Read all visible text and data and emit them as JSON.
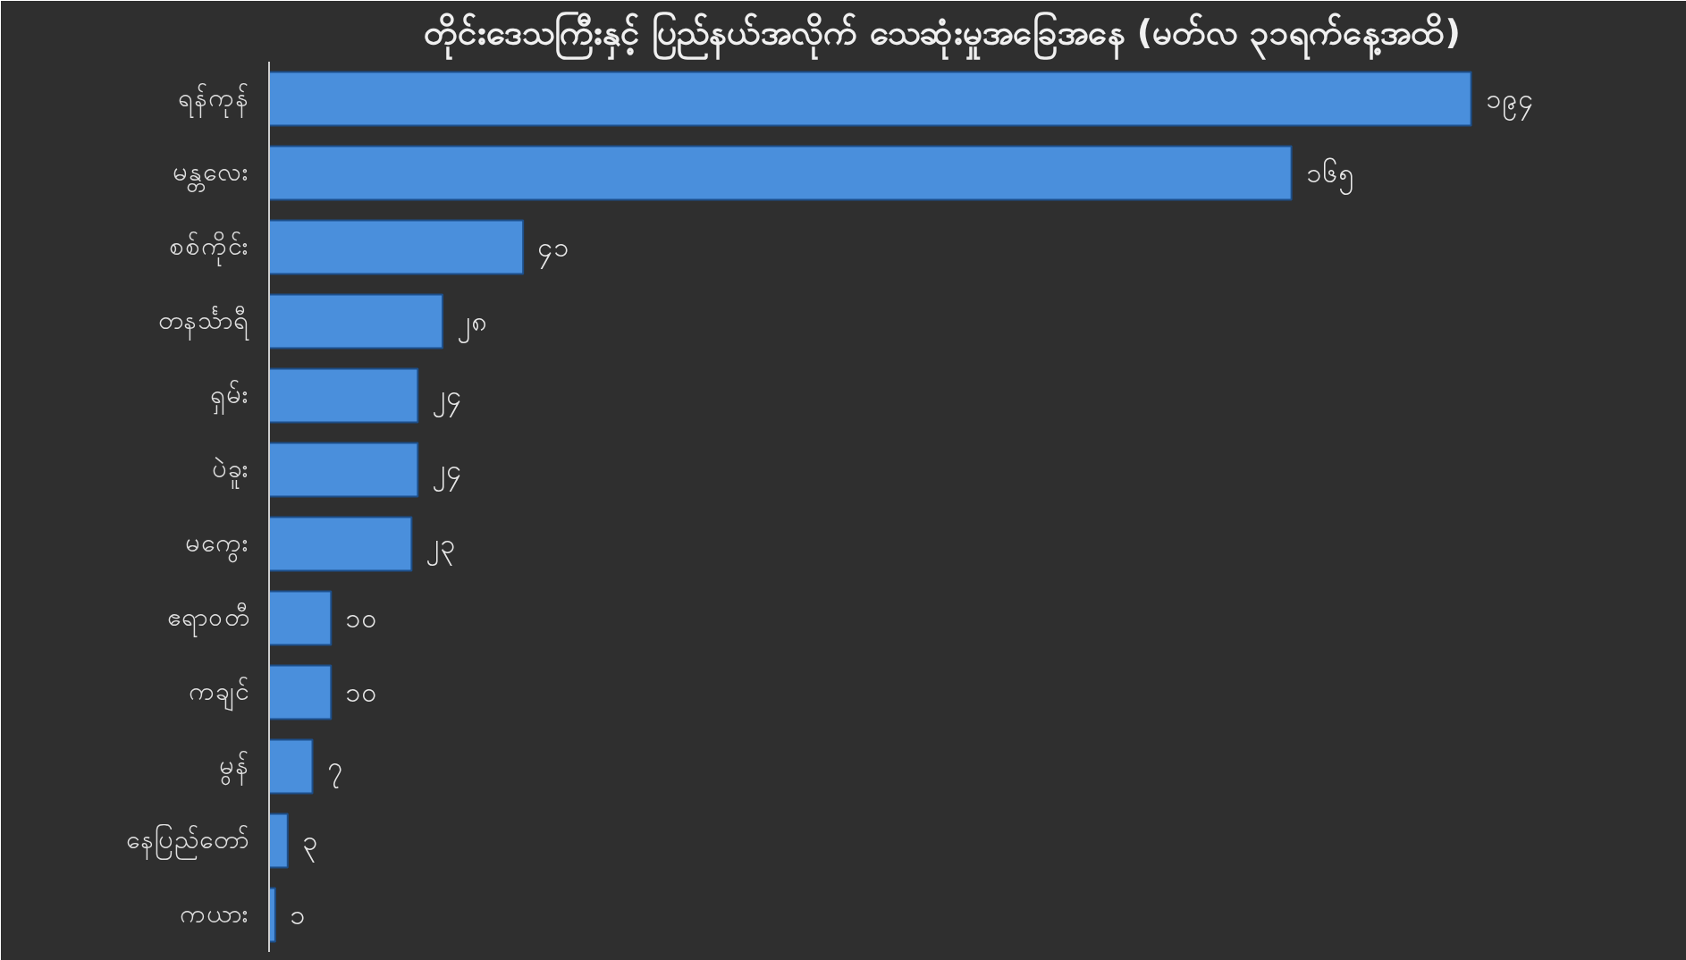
{
  "chart_data": {
    "type": "bar",
    "orientation": "horizontal",
    "title": "တိုင်းဒေသကြီးနှင့် ပြည်နယ်အလိုက် သေဆုံးမှုအခြေအနေ (မတ်လ ၃၁ရက်နေ့အထိ)",
    "categories": [
      "ရန်ကုန်",
      "မန္တလေး",
      "စစ်ကိုင်း",
      "တနင်္သာရီ",
      "ရှမ်း",
      "ပဲခူး",
      "မကွေး",
      "ဧရာဝတီ",
      "ကချင်",
      "မွန်",
      "နေပြည်တော်",
      "ကယား"
    ],
    "values": [
      194,
      165,
      41,
      28,
      24,
      24,
      23,
      10,
      10,
      7,
      3,
      1
    ],
    "value_labels": [
      "၁၉၄",
      "၁၆၅",
      "၄၁",
      "၂၈",
      "၂၄",
      "၂၄",
      "၂၃",
      "၁၀",
      "၁၀",
      "၇",
      "၃",
      "၁"
    ],
    "color": "#4a8fdc"
  }
}
